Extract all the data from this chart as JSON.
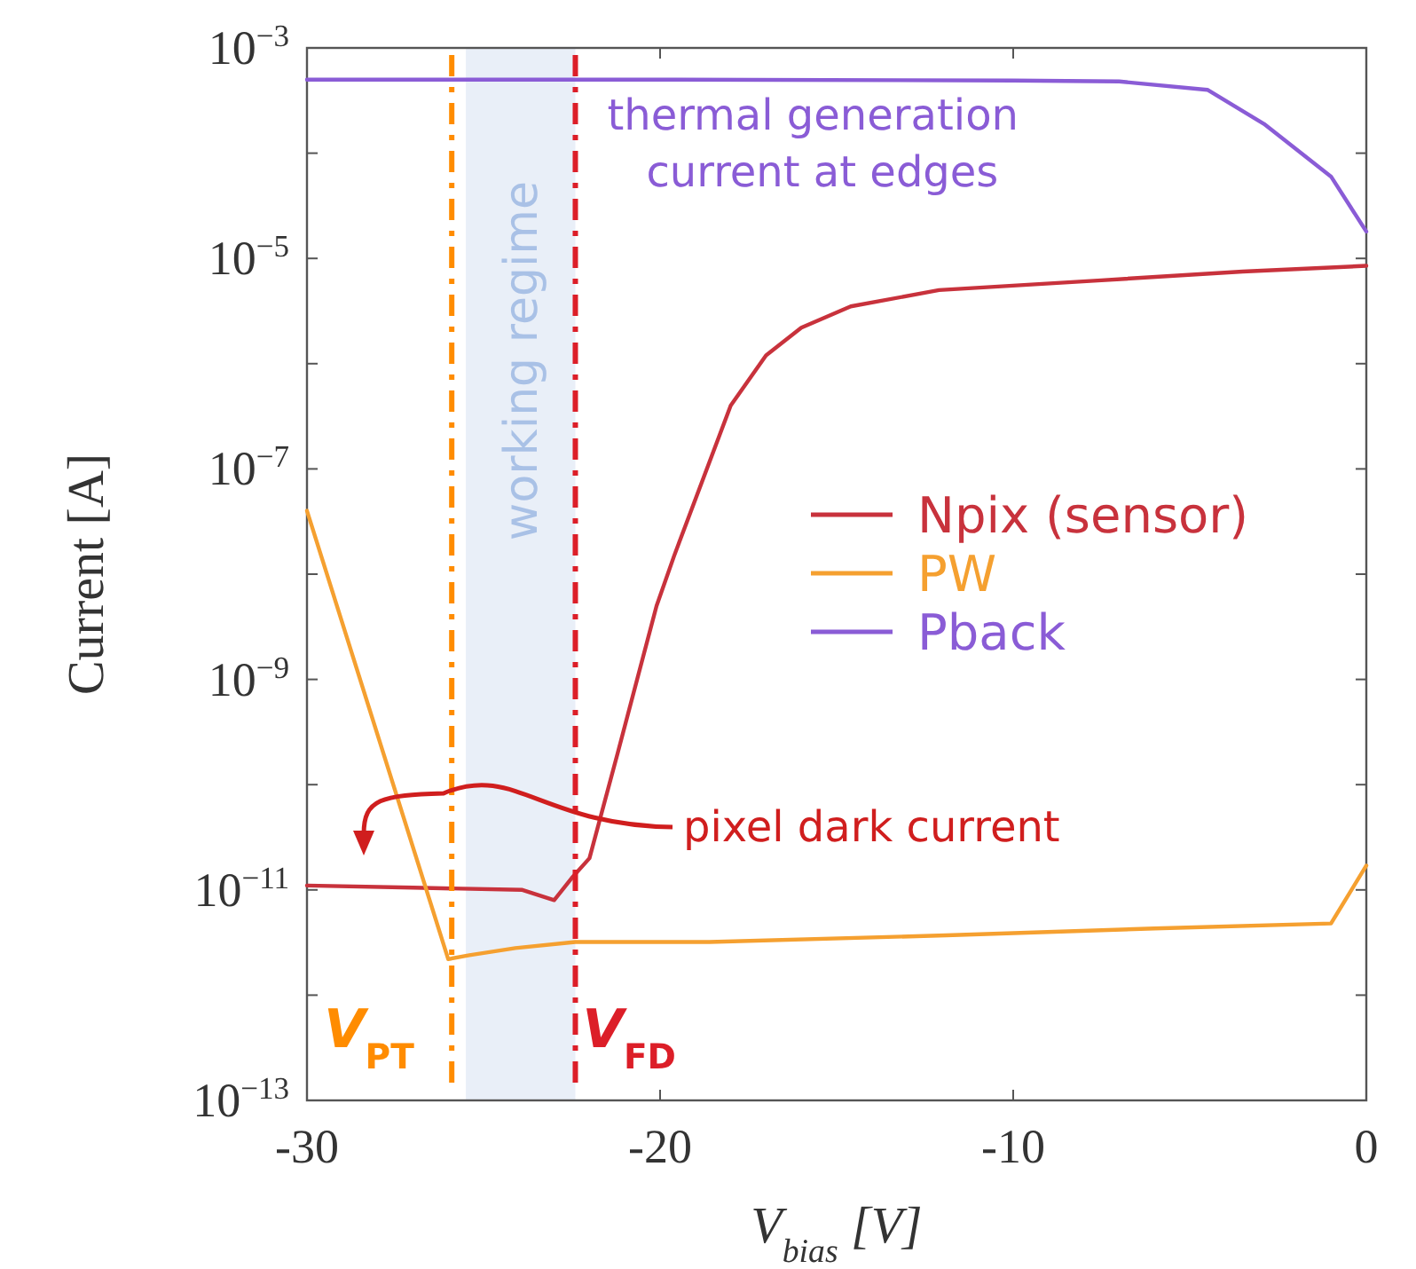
{
  "chart_data": {
    "type": "line",
    "xlabel": "V$_{bias}$ [V]",
    "ylabel": "Current [A]",
    "log": "y",
    "xlim": [
      -30,
      0
    ],
    "xticks": [
      -30,
      -20,
      -10,
      0
    ],
    "ylim": [
      1e-13,
      0.001
    ],
    "yticks": [
      {
        "value": 1e-13,
        "label": "10$^{−13}$"
      },
      {
        "value": 1e-12,
        "label": null
      },
      {
        "value": 1e-11,
        "label": "10$^{−11}$"
      },
      {
        "value": 1e-10,
        "label": null
      },
      {
        "value": 1e-09,
        "label": "10$^{−9}$"
      },
      {
        "value": 1e-08,
        "label": null
      },
      {
        "value": 1e-07,
        "label": "10$^{−7}$"
      },
      {
        "value": 1e-06,
        "label": null
      },
      {
        "value": 1e-05,
        "label": "10$^{−5}$"
      },
      {
        "value": 0.0001,
        "label": null
      },
      {
        "value": 0.001,
        "label": "10$^{−3}$"
      }
    ],
    "grid": false,
    "legend": "right",
    "line_style": "solid",
    "marker": "none",
    "series": [
      {
        "name": "Npix (sensor)",
        "color": "#c8323c",
        "x": [
          -30,
          -27,
          -23.9,
          -23,
          -22.5,
          -22,
          -21.2,
          -20.1,
          -19.6,
          -18,
          -17,
          -16,
          -14.6,
          -12.1,
          -7.5,
          -3.5,
          0
        ],
        "values": [
          1.1e-11,
          1.05e-11,
          1e-11,
          8e-12,
          1.3e-11,
          2e-11,
          2e-10,
          5e-09,
          1.5e-08,
          4e-07,
          1.2e-06,
          2.2e-06,
          3.5e-06,
          5e-06,
          6.2e-06,
          7.5e-06,
          8.5e-06
        ]
      },
      {
        "name": "PW",
        "color": "#f5a030",
        "x": [
          -30,
          -26,
          -25.4,
          -24.1,
          -22.4,
          -18.6,
          -11.9,
          -6,
          -1,
          0
        ],
        "values": [
          4e-08,
          2.2e-12,
          2.4e-12,
          2.8e-12,
          3.2e-12,
          3.2e-12,
          3.7e-12,
          4.3e-12,
          4.8e-12,
          1.7e-11
        ]
      },
      {
        "name": "Pback",
        "color": "#8a5cd6",
        "x": [
          -30,
          -20,
          -10,
          -7,
          -4.5,
          -2.9,
          -1,
          0
        ],
        "values": [
          0.0005,
          0.0005,
          0.00049,
          0.00048,
          0.0004,
          0.00019,
          6e-05,
          1.8e-05
        ]
      }
    ],
    "ref_lines": [
      {
        "axis": "x",
        "value": -25.9,
        "label": "V$_{PT}$",
        "color": "#ff8c00",
        "line_style": "dashdot"
      },
      {
        "axis": "x",
        "value": -22.4,
        "label": "V$_{FD}$",
        "color": "#dc1e28",
        "line_style": "dashdot"
      }
    ],
    "bands": [
      {
        "axis": "x",
        "from": -25.5,
        "to": -22.4,
        "label": "working regime",
        "color": "#e9eff8"
      }
    ],
    "annotations": [
      {
        "text": "thermal generation\ncurrent at edges",
        "x": -22.3,
        "y": 0.0005
      },
      "pixel dark current"
    ]
  }
}
